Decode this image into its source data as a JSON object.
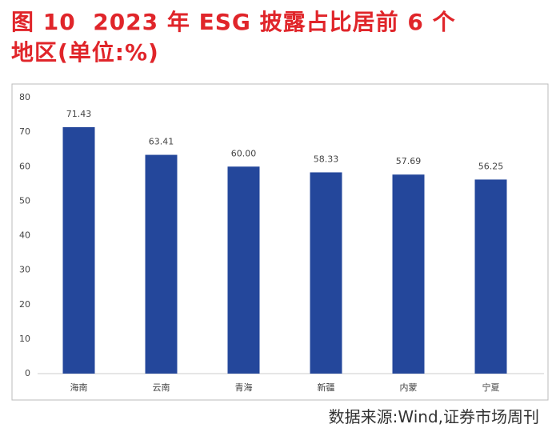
{
  "chart_data": {
    "type": "bar",
    "title": [
      "图 10  2023 年 ESG 披露占比居前 6 个",
      "地区(单位:%)"
    ],
    "categories": [
      "海南",
      "云南",
      "青海",
      "新疆",
      "内蒙",
      "宁夏"
    ],
    "values": [
      71.43,
      63.41,
      60.0,
      58.33,
      57.69,
      56.25
    ],
    "value_labels": [
      "71.43",
      "63.41",
      "60.00",
      "58.33",
      "57.69",
      "56.25"
    ],
    "color": "#24479b",
    "ylim": [
      0,
      80
    ],
    "yticks": [
      0,
      10,
      20,
      30,
      40,
      50,
      60,
      70,
      80
    ],
    "grid": false,
    "source": "数据来源:Wind,证券市场周刊"
  }
}
